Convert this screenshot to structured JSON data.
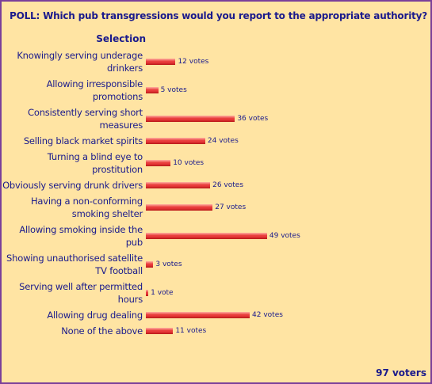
{
  "chart_data": {
    "type": "bar",
    "orientation": "horizontal",
    "title": "POLL: Which pub transgressions would you report to the appropriate authority?",
    "category_header": "Selection",
    "categories": [
      "Knowingly serving underage drinkers",
      "Allowing irresponsible promotions",
      "Consistently serving short measures",
      "Selling black market spirits",
      "Turning a blind eye to prostitution",
      "Obviously serving drunk drivers",
      "Having a non-conforming smoking shelter",
      "Allowing smoking inside the pub",
      "Showing unauthorised satellite TV football",
      "Serving well after permitted hours",
      "Allowing drug dealing",
      "None of the above"
    ],
    "values": [
      12,
      5,
      36,
      24,
      10,
      26,
      27,
      49,
      3,
      1,
      42,
      11
    ],
    "value_labels": [
      "12 votes",
      "5 votes",
      "36 votes",
      "24 votes",
      "10 votes",
      "26 votes",
      "27 votes",
      "49 votes",
      "3 votes",
      "1 vote",
      "42 votes",
      "11 votes"
    ],
    "color": "#e83a3a",
    "total_label": "97 voters"
  }
}
